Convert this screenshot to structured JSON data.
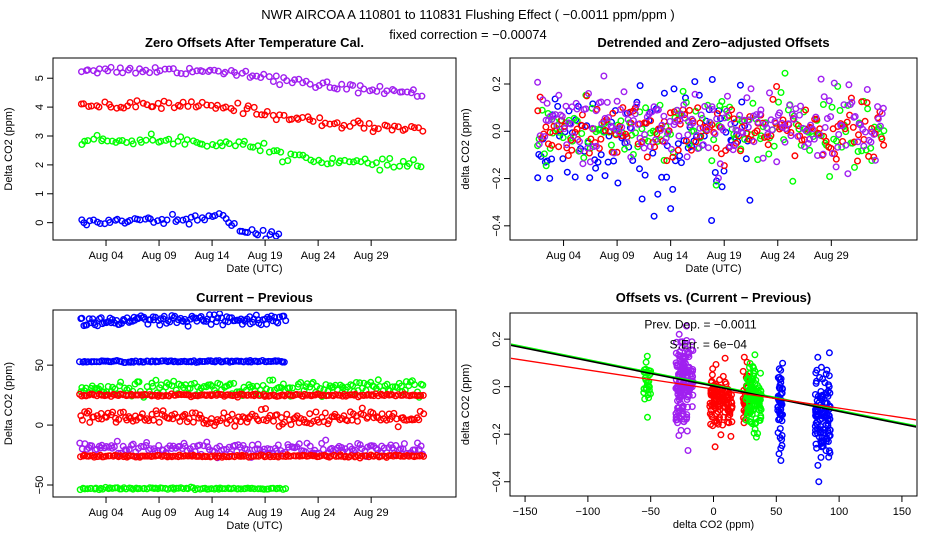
{
  "header": {
    "title": "NWR   AIRCOA A   110801 to 110831   Flushing Effect ( −0.0011 ppm/ppm )",
    "subtitle": "fixed correction = −0.00074"
  },
  "colors": {
    "blue": "#0000ff",
    "red": "#ff0000",
    "green": "#00ff00",
    "purple": "#a020f0",
    "black": "#000000"
  },
  "chart_data": [
    {
      "id": "p1",
      "type": "scatter",
      "title": "Zero Offsets After Temperature Cal.",
      "xlabel": "Date (UTC)",
      "ylabel": "Delta CO2 (ppm)",
      "xlim": [
        -2,
        36
      ],
      "ylim": [
        -0.6,
        5.7
      ],
      "xticks": [
        3,
        8,
        13,
        18,
        23,
        28
      ],
      "xticklabels": [
        "Aug 04",
        "Aug 09",
        "Aug 14",
        "Aug 19",
        "Aug 24",
        "Aug 29"
      ],
      "yticks": [
        0,
        1,
        2,
        3,
        4,
        5
      ],
      "yticklabels": [
        "0",
        "1",
        "2",
        "3",
        "4",
        "5"
      ],
      "series": [
        {
          "name": "purple",
          "color": "purple",
          "x0": 0.5,
          "x1": 33,
          "n": 90,
          "noise": 0.07,
          "x": [
            0,
            6,
            12,
            16,
            20,
            25,
            30,
            33
          ],
          "y": [
            5.3,
            5.28,
            5.27,
            5.2,
            4.9,
            4.7,
            4.55,
            4.45
          ]
        },
        {
          "name": "red",
          "color": "red",
          "x0": 0.5,
          "x1": 33,
          "n": 90,
          "noise": 0.08,
          "x": [
            0,
            6,
            12,
            16,
            20,
            25,
            30,
            33
          ],
          "y": [
            4.1,
            4.05,
            4.05,
            3.95,
            3.65,
            3.4,
            3.3,
            3.25
          ]
        },
        {
          "name": "green",
          "color": "green",
          "x0": 0.5,
          "x1": 33,
          "n": 90,
          "noise": 0.08,
          "x": [
            0,
            6,
            12,
            16,
            20,
            25,
            30,
            33
          ],
          "y": [
            2.85,
            2.85,
            2.8,
            2.7,
            2.35,
            2.1,
            2.0,
            2.0
          ]
        },
        {
          "name": "blue",
          "color": "blue",
          "x0": 0.5,
          "x1": 19.5,
          "n": 60,
          "noise": 0.07,
          "x": [
            0,
            5,
            10,
            14,
            16,
            19.5
          ],
          "y": [
            0.0,
            0.05,
            0.1,
            0.2,
            -0.3,
            -0.4
          ]
        }
      ]
    },
    {
      "id": "p2",
      "type": "scatter",
      "title": "Detrended and Zero−adjusted Offsets",
      "xlabel": "Date (UTC)",
      "ylabel": "delta CO2 (ppm)",
      "xlim": [
        -2,
        36
      ],
      "ylim": [
        -0.46,
        0.31
      ],
      "xticks": [
        3,
        8,
        13,
        18,
        23,
        28
      ],
      "xticklabels": [
        "Aug 04",
        "Aug 09",
        "Aug 14",
        "Aug 19",
        "Aug 24",
        "Aug 29"
      ],
      "yticks": [
        -0.4,
        -0.2,
        0.0,
        0.2
      ],
      "yticklabels": [
        "−0.4",
        "−0.2",
        "0.0",
        "0.2"
      ],
      "series": [
        {
          "name": "blue",
          "color": "blue",
          "x0": 0.5,
          "x1": 20.5,
          "n": 110,
          "noise": 0.12,
          "x": [
            0,
            20.5
          ],
          "y": [
            -0.07,
            -0.07
          ]
        },
        {
          "name": "green",
          "color": "green",
          "x0": 0.5,
          "x1": 33,
          "n": 160,
          "noise": 0.08,
          "x": [
            0,
            33
          ],
          "y": [
            0.0,
            0.0
          ]
        },
        {
          "name": "red",
          "color": "red",
          "x0": 0.5,
          "x1": 33,
          "n": 170,
          "noise": 0.06,
          "x": [
            0,
            33
          ],
          "y": [
            0.0,
            0.0
          ]
        },
        {
          "name": "purple",
          "color": "purple",
          "x0": 0.5,
          "x1": 33,
          "n": 210,
          "noise": 0.08,
          "x": [
            0,
            33
          ],
          "y": [
            0.03,
            0.03
          ]
        }
      ]
    },
    {
      "id": "p3",
      "type": "scatter",
      "title": "Current − Previous",
      "xlabel": "Date (UTC)",
      "ylabel": "Delta CO2 (ppm)",
      "xlim": [
        -2,
        36
      ],
      "ylim": [
        -60,
        96
      ],
      "xticks": [
        3,
        8,
        13,
        18,
        23,
        28
      ],
      "xticklabels": [
        "Aug 04",
        "Aug 09",
        "Aug 14",
        "Aug 19",
        "Aug 24",
        "Aug 29"
      ],
      "yticks": [
        -50,
        0,
        50
      ],
      "yticklabels": [
        "−50",
        "0",
        "50"
      ],
      "series": [
        {
          "name": "blue-high",
          "color": "blue",
          "x0": 0.5,
          "x1": 20,
          "n": 120,
          "noise": 2.5,
          "x": [
            0,
            20
          ],
          "y": [
            86,
            88
          ]
        },
        {
          "name": "blue-line",
          "color": "blue",
          "x0": 0.5,
          "x1": 20,
          "n": 100,
          "noise": 0.4,
          "x": [
            0,
            20
          ],
          "y": [
            53,
            53
          ]
        },
        {
          "name": "green-upper",
          "color": "green",
          "x0": 0.5,
          "x1": 33,
          "n": 170,
          "noise": 3,
          "x": [
            0,
            33
          ],
          "y": [
            31,
            31
          ]
        },
        {
          "name": "red-upper",
          "color": "red",
          "x0": 0.5,
          "x1": 33,
          "n": 170,
          "noise": 0.5,
          "x": [
            0,
            33
          ],
          "y": [
            25,
            25
          ]
        },
        {
          "name": "red-mid",
          "color": "red",
          "x0": 0.5,
          "x1": 33,
          "n": 170,
          "noise": 3,
          "x": [
            0,
            33
          ],
          "y": [
            6,
            6
          ]
        },
        {
          "name": "purple-mid",
          "color": "purple",
          "x0": 0.5,
          "x1": 33,
          "n": 170,
          "noise": 3,
          "x": [
            0,
            33
          ],
          "y": [
            -20,
            -20
          ]
        },
        {
          "name": "red-lower",
          "color": "red",
          "x0": 0.5,
          "x1": 33,
          "n": 170,
          "noise": 0.5,
          "x": [
            0,
            33
          ],
          "y": [
            -26,
            -26
          ]
        },
        {
          "name": "green-lower",
          "color": "green",
          "x0": 0.5,
          "x1": 20,
          "n": 90,
          "noise": 0.4,
          "x": [
            0,
            20
          ],
          "y": [
            -53,
            -53
          ]
        }
      ]
    },
    {
      "id": "p4",
      "type": "scatter",
      "title": "Offsets vs. (Current − Previous)",
      "xlabel": "delta CO2 (ppm)",
      "ylabel": "delta CO2 (ppm)",
      "xlim": [
        -162,
        162
      ],
      "ylim": [
        -0.46,
        0.31
      ],
      "xticks": [
        -150,
        -100,
        -50,
        0,
        50,
        100,
        150
      ],
      "xticklabels": [
        "−150",
        "−100",
        "−50",
        "0",
        "50",
        "100",
        "150"
      ],
      "yticks": [
        -0.4,
        -0.2,
        0.0,
        0.2
      ],
      "yticklabels": [
        "−0.4",
        "−0.2",
        "0.0",
        "0.2"
      ],
      "annotations": [
        {
          "label": "Prev. Dep. =  −0.0011",
          "x": -55,
          "y": 0.245
        },
        {
          "label": "S.Err. =  6e−04",
          "x": -35,
          "y": 0.16
        }
      ],
      "clusters": [
        {
          "color": "green",
          "xc": -53,
          "xw": 3,
          "yc": 0.0,
          "ys": 0.07,
          "n": 30
        },
        {
          "color": "purple",
          "xc": -23,
          "xw": 7,
          "yc": 0.03,
          "ys": 0.09,
          "n": 160
        },
        {
          "color": "red",
          "xc": 6,
          "xw": 9,
          "yc": -0.05,
          "ys": 0.06,
          "n": 120
        },
        {
          "color": "red",
          "xc": 26,
          "xw": 2.5,
          "yc": -0.04,
          "ys": 0.06,
          "n": 50
        },
        {
          "color": "green",
          "xc": 32,
          "xw": 6,
          "yc": -0.05,
          "ys": 0.07,
          "n": 120
        },
        {
          "color": "blue",
          "xc": 53,
          "xw": 2,
          "yc": -0.07,
          "ys": 0.08,
          "n": 50
        },
        {
          "color": "blue",
          "xc": 87,
          "xw": 6,
          "yc": -0.12,
          "ys": 0.1,
          "n": 120
        }
      ],
      "lines": [
        {
          "name": "green-fit",
          "color": "green",
          "x": [
            -162,
            162
          ],
          "y": [
            0.18,
            -0.165
          ]
        },
        {
          "name": "black-fit",
          "color": "black",
          "x": [
            -162,
            162
          ],
          "y": [
            0.175,
            -0.17
          ]
        },
        {
          "name": "red-fit",
          "color": "red",
          "x": [
            -162,
            162
          ],
          "y": [
            0.12,
            -0.14
          ]
        }
      ]
    }
  ]
}
